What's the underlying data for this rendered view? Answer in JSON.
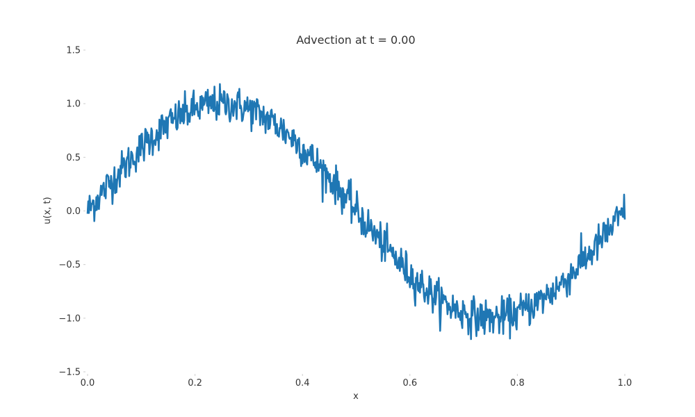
{
  "chart_data": {
    "type": "line",
    "title": "Advection at t = 0.00",
    "xlabel": "x",
    "ylabel": "u(x, t)",
    "xlim": [
      0.0,
      1.0
    ],
    "ylim": [
      -1.5,
      1.5
    ],
    "xticks": [
      "0.0",
      "0.2",
      "0.4",
      "0.6",
      "0.8",
      "1.0"
    ],
    "yticks": [
      "1.5",
      "1.0",
      "0.5",
      "0.0",
      "−0.5",
      "−1.0",
      "−1.5"
    ],
    "grid": false,
    "series": [
      {
        "color": "#1f77b4",
        "x": [
          0.0,
          0.025,
          0.05,
          0.075,
          0.1,
          0.125,
          0.15,
          0.175,
          0.2,
          0.225,
          0.25,
          0.275,
          0.3,
          0.325,
          0.35,
          0.375,
          0.4,
          0.425,
          0.45,
          0.475,
          0.5,
          0.525,
          0.55,
          0.575,
          0.6,
          0.625,
          0.65,
          0.675,
          0.7,
          0.725,
          0.75,
          0.775,
          0.8,
          0.825,
          0.85,
          0.875,
          0.9,
          0.925,
          0.95,
          0.975,
          1.0
        ],
        "y": [
          0.0,
          0.16,
          0.31,
          0.45,
          0.59,
          0.71,
          0.81,
          0.89,
          0.95,
          0.99,
          1.0,
          0.99,
          0.95,
          0.89,
          0.81,
          0.71,
          0.59,
          0.45,
          0.31,
          0.16,
          0.0,
          -0.16,
          -0.31,
          -0.45,
          -0.59,
          -0.71,
          -0.81,
          -0.89,
          -0.95,
          -0.99,
          -1.0,
          -0.99,
          -0.95,
          -0.89,
          -0.81,
          -0.71,
          -0.59,
          -0.45,
          -0.31,
          -0.16,
          0.0
        ]
      }
    ]
  }
}
